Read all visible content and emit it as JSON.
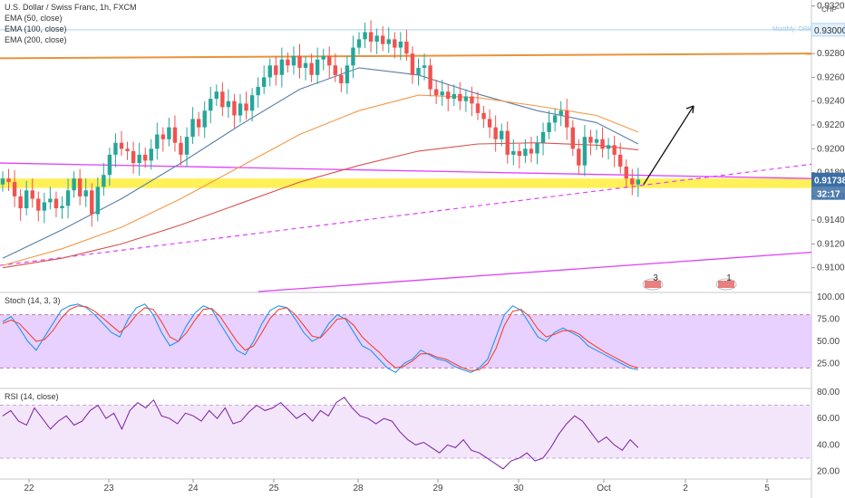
{
  "legend": {
    "title": "U.S. Dollar / Swiss Franc, 1h, FXCM",
    "ema50": "EMA (50, close)",
    "ema100": "EMA (100, close)",
    "ema200": "EMA (200, close)",
    "currency": "CHF",
    "monthly_label": "Monthly: ORK"
  },
  "price_tags": {
    "last_price": "0.91738",
    "countdown": "32:17",
    "top_level": "0.93000"
  },
  "oscillators": {
    "stoch_title": "Stoch (14, 3, 3)",
    "rsi_title": "RSI (14, close)"
  },
  "events": [
    {
      "label": "3",
      "x_index": 7.6
    },
    {
      "label": "1",
      "x_index": 8.5
    }
  ],
  "colors": {
    "up": "#26a69a",
    "down": "#ef5350",
    "ema50": "#5b7fa8",
    "ema100": "#f2994a",
    "ema200": "#d9534f",
    "magenta": "#e040fb",
    "orange_line": "#e8923b",
    "zone": "#ffef3a",
    "stoch_k": "#2196f3",
    "stoch_d": "#f44336",
    "rsi": "#7b1fa2",
    "osc_band": "#e6ccff",
    "last_tag": "#3a6ea5"
  },
  "chart_data": [
    {
      "type": "candlestick",
      "title": "U.S. Dollar / Swiss Franc, 1h, FXCM",
      "x_labels": [
        "22",
        "23",
        "24",
        "25",
        "28",
        "29",
        "30",
        "Oct",
        "2",
        "5"
      ],
      "ylim": [
        0.908,
        0.9325
      ],
      "y_ticks": [
        0.91,
        0.912,
        0.914,
        0.916,
        0.918,
        0.92,
        0.922,
        0.924,
        0.926,
        0.928,
        0.93,
        0.932
      ],
      "last_price": 0.91738,
      "closes": [
        0.9175,
        0.9172,
        0.916,
        0.915,
        0.9165,
        0.9158,
        0.9148,
        0.9155,
        0.9158,
        0.915,
        0.9152,
        0.9165,
        0.9175,
        0.916,
        0.9165,
        0.9145,
        0.9168,
        0.9178,
        0.9195,
        0.9205,
        0.92,
        0.9198,
        0.9188,
        0.9195,
        0.919,
        0.92,
        0.9212,
        0.9208,
        0.9218,
        0.9205,
        0.9195,
        0.921,
        0.9225,
        0.9218,
        0.9232,
        0.9242,
        0.9248,
        0.9235,
        0.924,
        0.9228,
        0.9238,
        0.9232,
        0.9245,
        0.9252,
        0.926,
        0.927,
        0.9262,
        0.9275,
        0.927,
        0.9278,
        0.9268,
        0.9272,
        0.9262,
        0.9275,
        0.9278,
        0.927,
        0.9262,
        0.9255,
        0.927,
        0.9285,
        0.9292,
        0.9298,
        0.929,
        0.9295,
        0.9288,
        0.9292,
        0.9285,
        0.929,
        0.928,
        0.9262,
        0.9268,
        0.927,
        0.925,
        0.9245,
        0.9248,
        0.9242,
        0.9246,
        0.924,
        0.9244,
        0.9238,
        0.923,
        0.9225,
        0.9218,
        0.9208,
        0.9215,
        0.9195,
        0.9198,
        0.9194,
        0.92,
        0.9196,
        0.9205,
        0.9214,
        0.9222,
        0.9228,
        0.9232,
        0.9218,
        0.92,
        0.9186,
        0.921,
        0.9205,
        0.9208,
        0.92,
        0.9203,
        0.9195,
        0.9185,
        0.9175,
        0.917,
        0.9174
      ],
      "series": [
        {
          "name": "EMA (50, close)",
          "points": [
            [
              0,
              0.9108
            ],
            [
              10,
              0.9132
            ],
            [
              20,
              0.9158
            ],
            [
              30,
              0.9188
            ],
            [
              40,
              0.922
            ],
            [
              50,
              0.925
            ],
            [
              60,
              0.9268
            ],
            [
              70,
              0.9262
            ],
            [
              80,
              0.9246
            ],
            [
              90,
              0.9232
            ],
            [
              100,
              0.9222
            ],
            [
              107,
              0.9204
            ]
          ]
        },
        {
          "name": "EMA (100, close)",
          "points": [
            [
              0,
              0.9102
            ],
            [
              10,
              0.9116
            ],
            [
              20,
              0.9134
            ],
            [
              30,
              0.9158
            ],
            [
              40,
              0.9185
            ],
            [
              50,
              0.9212
            ],
            [
              60,
              0.9232
            ],
            [
              70,
              0.9245
            ],
            [
              80,
              0.9243
            ],
            [
              90,
              0.9236
            ],
            [
              100,
              0.9228
            ],
            [
              107,
              0.9214
            ]
          ]
        },
        {
          "name": "EMA (200, close)",
          "points": [
            [
              0,
              0.91
            ],
            [
              10,
              0.9108
            ],
            [
              20,
              0.912
            ],
            [
              30,
              0.9136
            ],
            [
              40,
              0.9154
            ],
            [
              50,
              0.9172
            ],
            [
              60,
              0.9186
            ],
            [
              70,
              0.9198
            ],
            [
              80,
              0.9204
            ],
            [
              90,
              0.9205
            ],
            [
              100,
              0.9203
            ],
            [
              107,
              0.9199
            ]
          ]
        }
      ]
    },
    {
      "type": "line",
      "title": "Stoch (14, 3, 3)",
      "ylim": [
        0,
        100
      ],
      "y_ticks": [
        25,
        50,
        75,
        100
      ],
      "series": [
        {
          "name": "%K",
          "values": [
            72,
            78,
            65,
            50,
            40,
            55,
            70,
            85,
            90,
            92,
            88,
            80,
            70,
            60,
            55,
            75,
            88,
            92,
            80,
            60,
            45,
            50,
            68,
            82,
            90,
            86,
            70,
            55,
            40,
            35,
            50,
            70,
            85,
            90,
            88,
            75,
            60,
            50,
            55,
            70,
            80,
            75,
            60,
            45,
            40,
            30,
            20,
            15,
            25,
            30,
            40,
            35,
            30,
            28,
            22,
            18,
            15,
            20,
            30,
            55,
            80,
            90,
            85,
            70,
            55,
            50,
            60,
            65,
            60,
            55,
            45,
            40,
            35,
            30,
            25,
            20,
            18
          ]
        },
        {
          "name": "%D",
          "values": [
            70,
            74,
            70,
            60,
            50,
            52,
            62,
            76,
            86,
            90,
            89,
            84,
            76,
            68,
            60,
            68,
            80,
            88,
            86,
            72,
            55,
            50,
            60,
            74,
            86,
            87,
            78,
            64,
            50,
            40,
            45,
            60,
            76,
            86,
            88,
            80,
            68,
            56,
            54,
            64,
            75,
            76,
            68,
            55,
            46,
            38,
            28,
            20,
            22,
            28,
            36,
            36,
            32,
            30,
            25,
            20,
            17,
            18,
            25,
            42,
            68,
            84,
            86,
            78,
            64,
            55,
            58,
            62,
            62,
            58,
            50,
            44,
            38,
            33,
            28,
            23,
            20
          ]
        }
      ]
    },
    {
      "type": "line",
      "title": "RSI (14, close)",
      "ylim": [
        15,
        82
      ],
      "y_ticks": [
        20,
        40,
        60,
        80
      ],
      "series": [
        {
          "name": "RSI",
          "values": [
            62,
            66,
            58,
            55,
            68,
            60,
            52,
            58,
            62,
            55,
            58,
            66,
            70,
            60,
            64,
            52,
            66,
            72,
            68,
            74,
            62,
            60,
            56,
            64,
            62,
            58,
            66,
            60,
            68,
            56,
            58,
            65,
            70,
            66,
            68,
            72,
            66,
            60,
            64,
            58,
            66,
            62,
            72,
            76,
            68,
            62,
            60,
            56,
            60,
            58,
            50,
            44,
            40,
            42,
            38,
            34,
            40,
            38,
            44,
            36,
            34,
            30,
            26,
            22,
            28,
            30,
            34,
            28,
            30,
            38,
            48,
            56,
            62,
            58,
            50,
            42,
            46,
            40,
            36,
            44,
            38
          ]
        }
      ]
    }
  ]
}
